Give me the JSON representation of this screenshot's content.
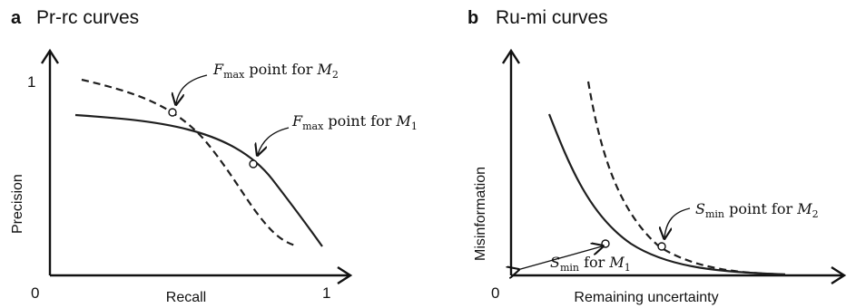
{
  "panel_a": {
    "letter": "a",
    "title": "Pr-rc curves",
    "y_axis_label": "Precision",
    "x_axis_label": "Recall",
    "y_tick": "1",
    "x_tick_start": "0",
    "x_tick_end": "1",
    "annotation_m2": {
      "prefix": "F",
      "sub": "max",
      "middle": " point for ",
      "model": "M",
      "model_sub": "2"
    },
    "annotation_m1": {
      "prefix": "F",
      "sub": "max",
      "middle": " point for ",
      "model": "M",
      "model_sub": "1"
    }
  },
  "panel_b": {
    "letter": "b",
    "title": "Ru-mi curves",
    "y_axis_label": "Misinformation",
    "x_axis_label": "Remaining uncertainty",
    "x_tick_start": "0",
    "annotation_m2": {
      "prefix": "S",
      "sub": "min",
      "middle": " point for ",
      "model": "M",
      "model_sub": "2"
    },
    "annotation_m1": {
      "prefix": "S",
      "sub": "min",
      "middle": " for ",
      "model": "M",
      "model_sub": "1"
    }
  }
}
